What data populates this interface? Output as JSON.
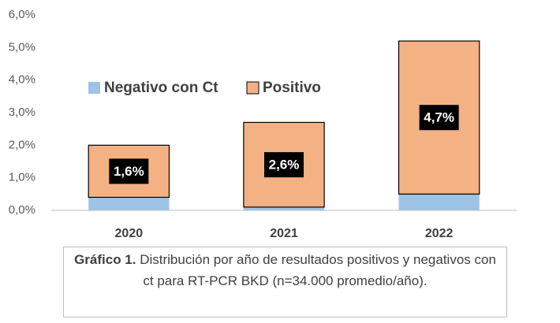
{
  "chart_data": {
    "type": "stacked_bar",
    "categories": [
      "2020",
      "2021",
      "2022"
    ],
    "series": [
      {
        "name": "Negativo con Ct",
        "color": "#9dc3e6",
        "values": [
          0.4,
          0.1,
          0.5
        ]
      },
      {
        "name": "Positivo",
        "color": "#f4b183",
        "values": [
          1.6,
          2.6,
          4.7
        ],
        "value_labels": [
          "1,6%",
          "2,6%",
          "4,7%"
        ]
      }
    ],
    "ylim": [
      0,
      6
    ],
    "yticks": [
      {
        "value": 0,
        "label": "0,0%"
      },
      {
        "value": 1,
        "label": "1,0%"
      },
      {
        "value": 2,
        "label": "2,0%"
      },
      {
        "value": 3,
        "label": "3,0%"
      },
      {
        "value": 4,
        "label": "4,0%"
      },
      {
        "value": 5,
        "label": "5,0%"
      },
      {
        "value": 6,
        "label": "6,0%"
      }
    ],
    "grid": false,
    "legend": "top-left",
    "caption_label": "Gráfico 1.",
    "caption": "Distribución por año de resultados positivos y negativos con ct para RT-PCR BKD (n=34.000 promedio/año)."
  }
}
